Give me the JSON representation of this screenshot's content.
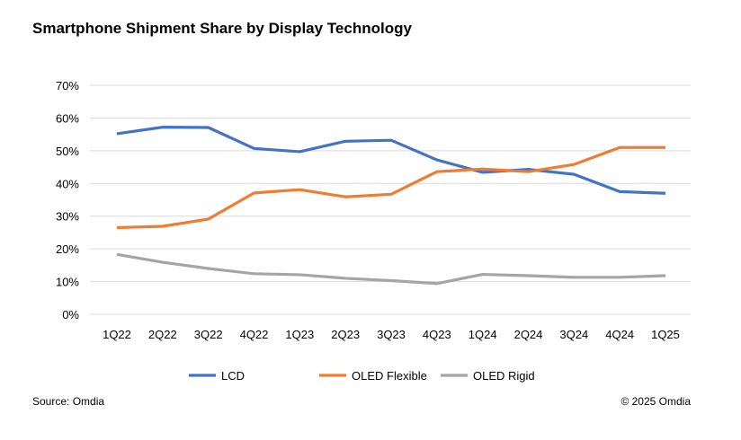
{
  "chart_data": {
    "type": "line",
    "title": "Smartphone Shipment Share by Display Technology",
    "categories": [
      "1Q22",
      "2Q22",
      "3Q22",
      "4Q22",
      "1Q23",
      "2Q23",
      "3Q23",
      "4Q23",
      "1Q24",
      "2Q24",
      "3Q24",
      "4Q24",
      "1Q25"
    ],
    "ylim": [
      0,
      70
    ],
    "yticks": [
      0,
      10,
      20,
      30,
      40,
      50,
      60,
      70
    ],
    "ytick_format": "%",
    "grid": true,
    "legend_placement": "bottom",
    "series": [
      {
        "name": "LCD",
        "color": "#4472C4",
        "values": [
          55.2,
          57.2,
          57.1,
          50.7,
          49.7,
          52.9,
          53.2,
          47.2,
          43.4,
          44.3,
          42.8,
          37.5,
          37.0
        ]
      },
      {
        "name": "OLED Flexible",
        "color": "#ED7D31",
        "values": [
          26.5,
          26.9,
          29.1,
          37.1,
          38.1,
          35.9,
          36.7,
          43.6,
          44.4,
          43.6,
          45.8,
          51.0,
          51.0
        ]
      },
      {
        "name": "OLED Rigid",
        "color": "#A5A5A5",
        "values": [
          18.3,
          15.9,
          14.0,
          12.4,
          12.1,
          11.0,
          10.3,
          9.4,
          12.2,
          11.8,
          11.3,
          11.3,
          11.8
        ]
      }
    ]
  },
  "footer": {
    "source": "Source: Omdia",
    "copyright": "© 2025 Omdia"
  }
}
